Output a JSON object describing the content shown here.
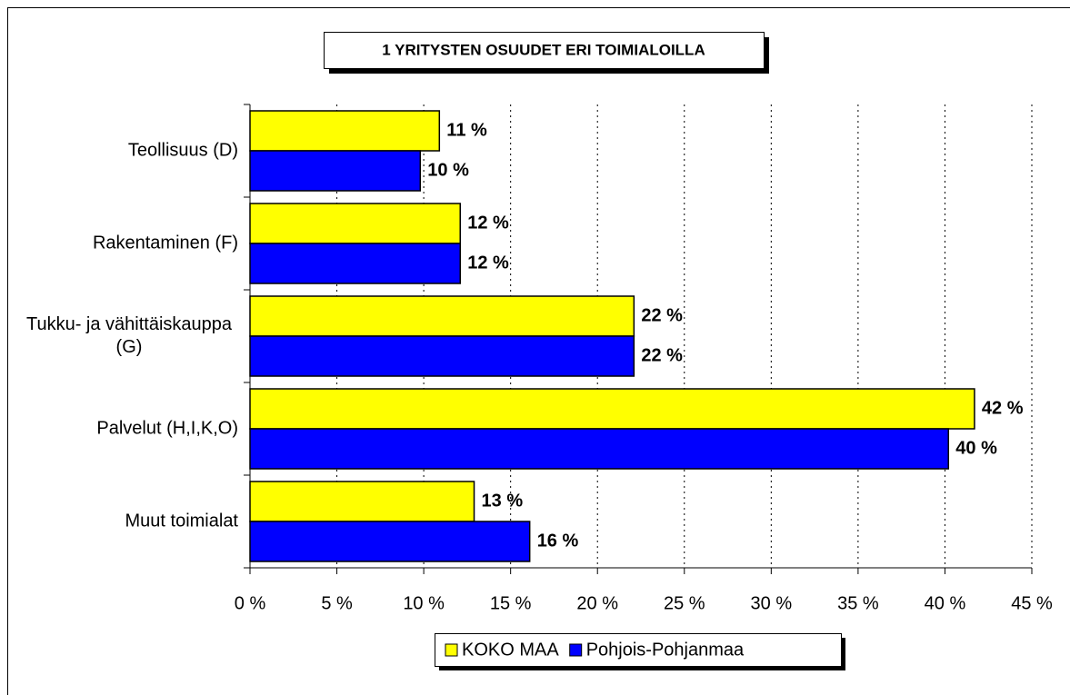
{
  "chart_data": {
    "type": "hbar",
    "title": "1 YRITYSTEN OSUUDET ERI TOIMIALOILLA",
    "categories": [
      "Teollisuus (D)",
      "Rakentaminen (F)",
      "Tukku- ja vähittäiskauppa (G)",
      "Palvelut (H,I,K,O)",
      "Muut toimialat"
    ],
    "series": [
      {
        "name": "KOKO MAA",
        "color": "#ffff00",
        "values": [
          10.9,
          12.1,
          22.1,
          41.7,
          12.9
        ],
        "value_labels": [
          "11 %",
          "12 %",
          "22 %",
          "42 %",
          "13 %"
        ]
      },
      {
        "name": "Pohjois-Pohjanmaa",
        "color": "#0000ff",
        "values": [
          9.8,
          12.1,
          22.1,
          40.2,
          16.1
        ],
        "value_labels": [
          "10 %",
          "12 %",
          "22 %",
          "40 %",
          "16 %"
        ]
      }
    ],
    "xlim": [
      0,
      45
    ],
    "xticks": [
      {
        "value": 0,
        "label": "0 %"
      },
      {
        "value": 5,
        "label": "5 %"
      },
      {
        "value": 10,
        "label": "10 %"
      },
      {
        "value": 15,
        "label": "15 %"
      },
      {
        "value": 20,
        "label": "20 %"
      },
      {
        "value": 25,
        "label": "25 %"
      },
      {
        "value": 30,
        "label": "30 %"
      },
      {
        "value": 35,
        "label": "35 %"
      },
      {
        "value": 40,
        "label": "40 %"
      },
      {
        "value": 45,
        "label": "45 %"
      }
    ],
    "grid": true,
    "legend": "bottom"
  }
}
